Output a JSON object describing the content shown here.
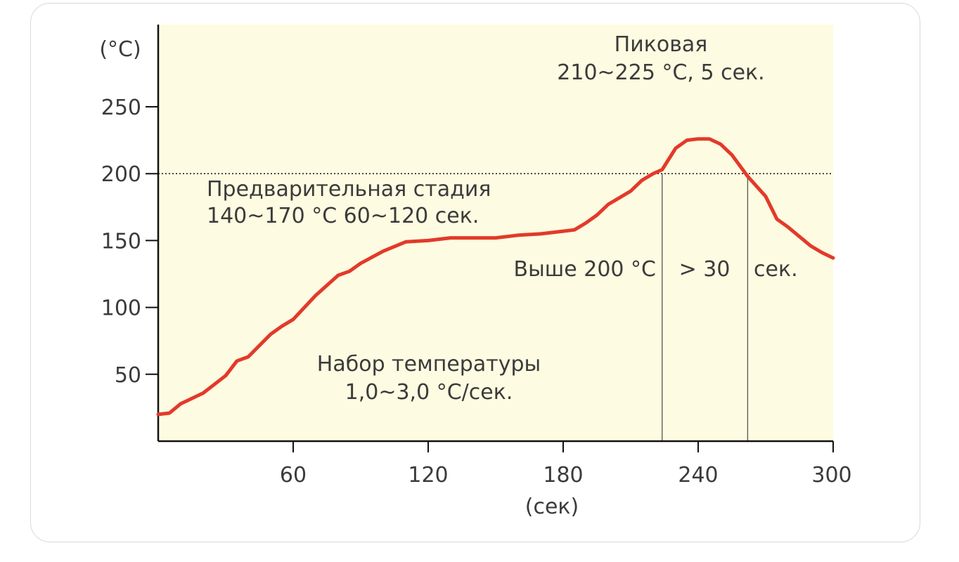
{
  "chart_data": {
    "type": "line",
    "title": "",
    "xlabel": "(сек)",
    "ylabel": "(°C)",
    "xlim": [
      0,
      300
    ],
    "ylim": [
      0,
      250
    ],
    "x_ticks": [
      60,
      120,
      180,
      240,
      300
    ],
    "y_ticks": [
      50,
      100,
      150,
      200,
      250
    ],
    "reference_line": {
      "y": 200,
      "style": "dotted"
    },
    "vertical_markers": [
      224,
      262
    ],
    "background_color": "#fdfbe1",
    "line_color": "#e23a2a",
    "series": [
      {
        "x": [
          0,
          5,
          10,
          20,
          30,
          35,
          40,
          50,
          55,
          60,
          65,
          70,
          80,
          85,
          90,
          100,
          110,
          120,
          130,
          140,
          150,
          160,
          170,
          180,
          185,
          190,
          195,
          200,
          210,
          215,
          220,
          224,
          230,
          235,
          240,
          245,
          250,
          255,
          262,
          270,
          275,
          280,
          290,
          295,
          300
        ],
        "y": [
          20,
          21,
          28,
          36,
          49,
          60,
          63,
          80,
          86,
          91,
          100,
          109,
          124,
          127,
          133,
          142,
          149,
          150,
          152,
          152,
          152,
          154,
          155,
          157,
          158,
          163,
          169,
          177,
          187,
          195,
          200,
          203,
          219,
          225,
          226,
          226,
          222,
          214,
          198,
          183,
          166,
          160,
          146,
          141,
          137
        ]
      }
    ],
    "annotations": [
      {
        "name": "peak",
        "lines": [
          "Пиковая",
          "210~225 °C, 5 сек."
        ]
      },
      {
        "name": "preheat",
        "lines": [
          "Предварительная стадия",
          "140~170 °C 60~120 сек."
        ]
      },
      {
        "name": "above-200",
        "parts": [
          "Выше 200 °C",
          "> 30",
          "сек."
        ]
      },
      {
        "name": "ramp",
        "lines": [
          "Набор температуры",
          "1,0~3,0 °C/сек."
        ]
      }
    ]
  }
}
